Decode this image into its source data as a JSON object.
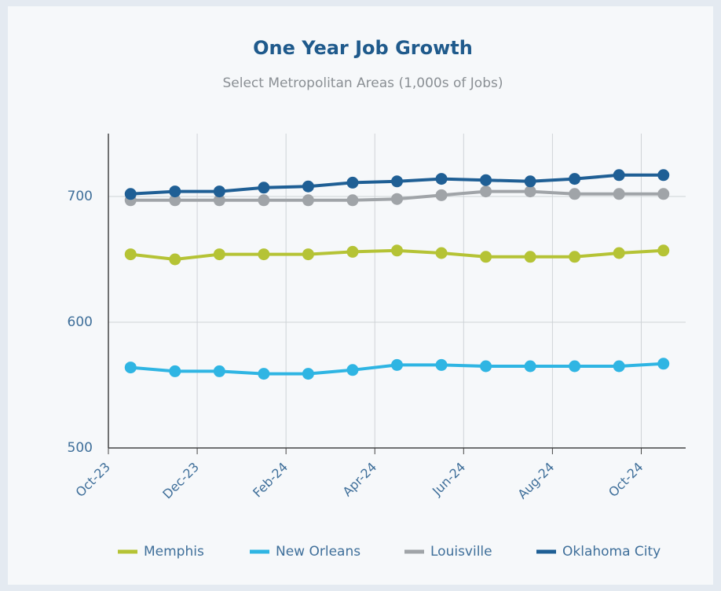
{
  "chart_data": {
    "type": "line",
    "title": "One Year Job Growth",
    "subtitle": "Select Metropolitan Areas (1,000s of Jobs)",
    "categories": [
      "Oct-23",
      null,
      "Dec-23",
      null,
      "Feb-24",
      null,
      "Apr-24",
      null,
      "Jun-24",
      null,
      "Aug-24",
      null,
      "Oct-24"
    ],
    "series": [
      {
        "name": "Memphis",
        "color": "#b5c335",
        "values": [
          654,
          650,
          654,
          654,
          654,
          656,
          657,
          655,
          652,
          652,
          652,
          655,
          657
        ]
      },
      {
        "name": "New Orleans",
        "color": "#2fb5e3",
        "values": [
          564,
          561,
          561,
          559,
          559,
          562,
          566,
          566,
          565,
          565,
          565,
          565,
          567
        ]
      },
      {
        "name": "Louisville",
        "color": "#a0a4a8",
        "values": [
          697,
          697,
          697,
          697,
          697,
          697,
          698,
          701,
          704,
          704,
          702,
          702,
          702
        ]
      },
      {
        "name": "Oklahoma City",
        "color": "#1f5f95",
        "values": [
          702,
          704,
          704,
          707,
          708,
          711,
          712,
          714,
          713,
          712,
          714,
          717,
          717
        ]
      }
    ],
    "ylim": [
      500,
      750
    ],
    "yticks": [
      500,
      600,
      700
    ],
    "grid": true,
    "legend": "bottom"
  }
}
